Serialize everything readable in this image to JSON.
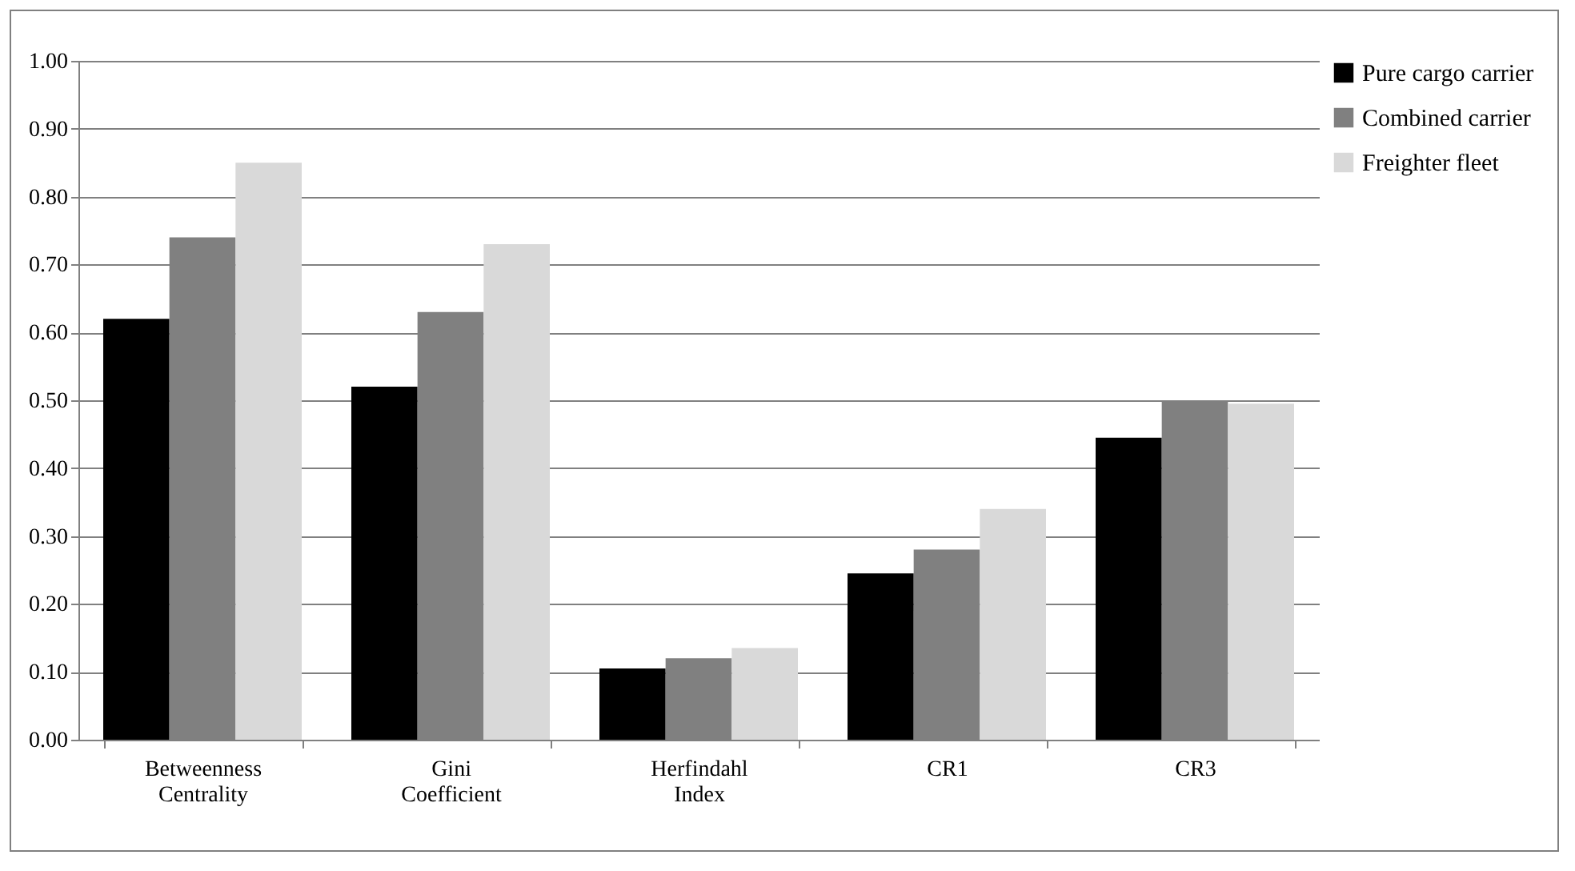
{
  "chart_data": {
    "type": "bar",
    "categories": [
      "Betweenness Centrality",
      "Gini Coefficient",
      "Herfindahl Index",
      "CR1",
      "CR3"
    ],
    "series": [
      {
        "name": "Pure cargo carrier",
        "color": "#000000",
        "values": [
          0.62,
          0.52,
          0.105,
          0.245,
          0.445
        ]
      },
      {
        "name": "Combined carrier",
        "color": "#808080",
        "values": [
          0.74,
          0.63,
          0.12,
          0.28,
          0.5
        ]
      },
      {
        "name": "Freighter fleet",
        "color": "#d9d9d9",
        "values": [
          0.85,
          0.73,
          0.135,
          0.34,
          0.495
        ]
      }
    ],
    "ylim": [
      0,
      1
    ],
    "yticks": [
      {
        "value": 0,
        "label": "0.00"
      },
      {
        "value": 0.1,
        "label": "0.10"
      },
      {
        "value": 0.2,
        "label": "0.20"
      },
      {
        "value": 0.3,
        "label": "0.30"
      },
      {
        "value": 0.4,
        "label": "0.40"
      },
      {
        "value": 0.5,
        "label": "0.50"
      },
      {
        "value": 0.6,
        "label": "0.60"
      },
      {
        "value": 0.7,
        "label": "0.70"
      },
      {
        "value": 0.8,
        "label": "0.80"
      },
      {
        "value": 0.9,
        "label": "0.90"
      },
      {
        "value": 1,
        "label": "1.00"
      }
    ],
    "grid": "y",
    "legend": "right"
  }
}
